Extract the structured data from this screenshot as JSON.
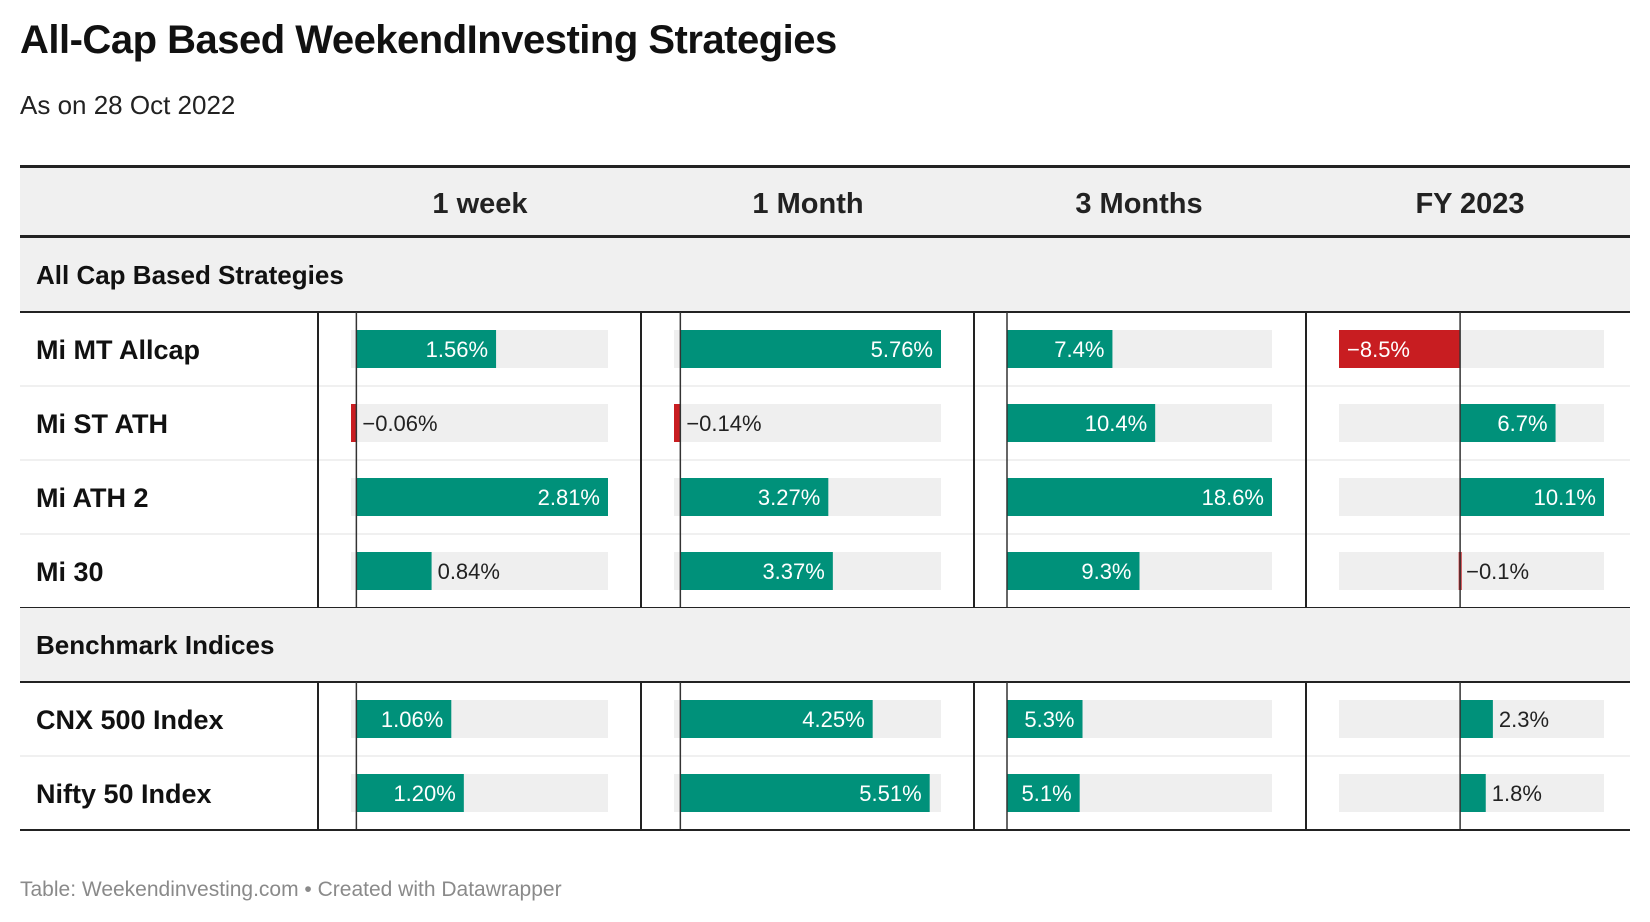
{
  "title": "All-Cap Based WeekendInvesting Strategies",
  "subtitle": "As on 28 Oct 2022",
  "footer": "Table: Weekendinvesting.com • Created with Datawrapper",
  "colors": {
    "positive": "#00917a",
    "negative": "#c81d21",
    "track": "#efefef",
    "header_bg": "#f0f0f0"
  },
  "chart_data": {
    "type": "table",
    "columns": [
      "1 week",
      "1 Month",
      "3 Months",
      "FY 2023"
    ],
    "column_ranges": [
      [
        -0.06,
        2.81
      ],
      [
        -0.14,
        5.76
      ],
      [
        0,
        18.6
      ],
      [
        -8.5,
        10.1
      ]
    ],
    "groups": [
      {
        "name": "All Cap Based Strategies",
        "rows": [
          {
            "name": "Mi MT Allcap",
            "values": [
              1.56,
              5.76,
              7.4,
              -8.5
            ],
            "labels": [
              "1.56%",
              "5.76%",
              "7.4%",
              "−8.5%"
            ]
          },
          {
            "name": "Mi ST ATH",
            "values": [
              -0.06,
              -0.14,
              10.4,
              6.7
            ],
            "labels": [
              "−0.06%",
              "−0.14%",
              "10.4%",
              "6.7%"
            ]
          },
          {
            "name": "Mi ATH 2",
            "values": [
              2.81,
              3.27,
              18.6,
              10.1
            ],
            "labels": [
              "2.81%",
              "3.27%",
              "18.6%",
              "10.1%"
            ]
          },
          {
            "name": "Mi 30",
            "values": [
              0.84,
              3.37,
              9.3,
              -0.1
            ],
            "labels": [
              "0.84%",
              "3.37%",
              "9.3%",
              "−0.1%"
            ]
          }
        ]
      },
      {
        "name": "Benchmark Indices",
        "rows": [
          {
            "name": "CNX 500 Index",
            "values": [
              1.06,
              4.25,
              5.3,
              2.3
            ],
            "labels": [
              "1.06%",
              "4.25%",
              "5.3%",
              "2.3%"
            ]
          },
          {
            "name": "Nifty 50 Index",
            "values": [
              1.2,
              5.51,
              5.1,
              1.8
            ],
            "labels": [
              "1.20%",
              "5.51%",
              "5.1%",
              "1.8%"
            ]
          }
        ]
      }
    ]
  }
}
